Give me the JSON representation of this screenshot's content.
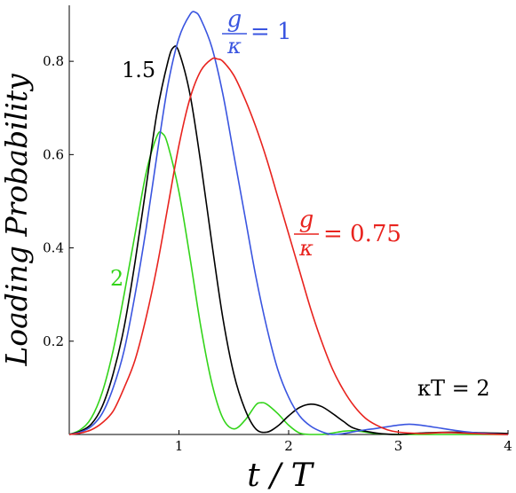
{
  "chart_data": {
    "type": "line",
    "xlabel": "t / T",
    "ylabel": "Loading Probability",
    "xlim": [
      0,
      4
    ],
    "ylim": [
      0,
      0.92
    ],
    "grid": false,
    "legend": "none",
    "x_ticks": [
      "1",
      "2",
      "3",
      "4"
    ],
    "y_ticks": [
      "0.2",
      "0.4",
      "0.6",
      "0.8"
    ],
    "x_tick_values": [
      1,
      2,
      3,
      4
    ],
    "y_tick_values": [
      0.2,
      0.4,
      0.6,
      0.8
    ],
    "annotations": {
      "g_over_kappa_1": {
        "num": "g",
        "den": "κ",
        "rhs": "= 1",
        "color": "#3a55e0"
      },
      "g_over_kappa_075": {
        "num": "g",
        "den": "κ",
        "rhs": "= 0.75",
        "color": "#e8231e"
      },
      "label_15": {
        "text": "1.5",
        "color": "#000000"
      },
      "label_2": {
        "text": "2",
        "color": "#33d41a"
      },
      "kappa_T": {
        "text": "κT = 2",
        "color": "#000000"
      }
    },
    "series": [
      {
        "color": "#33d41a",
        "x": [
          0,
          0.1,
          0.2,
          0.3,
          0.4,
          0.5,
          0.6,
          0.7,
          0.8,
          0.85,
          0.9,
          1.0,
          1.1,
          1.2,
          1.3,
          1.4,
          1.5,
          1.6,
          1.7,
          1.75,
          1.8,
          1.9,
          2.0,
          2.1,
          2.2,
          2.3,
          2.4,
          2.5,
          2.6,
          2.7,
          2.8,
          3.0,
          3.5,
          4.0
        ],
        "y": [
          0,
          0.01,
          0.035,
          0.09,
          0.18,
          0.3,
          0.43,
          0.56,
          0.64,
          0.645,
          0.62,
          0.52,
          0.38,
          0.23,
          0.11,
          0.035,
          0.012,
          0.03,
          0.063,
          0.068,
          0.065,
          0.045,
          0.02,
          0.003,
          0.0,
          0.0,
          0.003,
          0.007,
          0.008,
          0.005,
          0.002,
          0.0,
          0.0,
          0.0
        ]
      },
      {
        "color": "#000000",
        "x": [
          0,
          0.1,
          0.2,
          0.3,
          0.4,
          0.5,
          0.6,
          0.7,
          0.8,
          0.9,
          0.95,
          1.0,
          1.1,
          1.2,
          1.3,
          1.4,
          1.5,
          1.6,
          1.7,
          1.8,
          1.9,
          2.0,
          2.1,
          2.2,
          2.3,
          2.4,
          2.5,
          2.6,
          2.8,
          3.0,
          3.2,
          3.5,
          4.0
        ],
        "y": [
          0,
          0.007,
          0.022,
          0.06,
          0.13,
          0.23,
          0.37,
          0.53,
          0.69,
          0.8,
          0.83,
          0.82,
          0.73,
          0.58,
          0.41,
          0.25,
          0.13,
          0.055,
          0.012,
          0.005,
          0.018,
          0.04,
          0.058,
          0.065,
          0.06,
          0.045,
          0.028,
          0.013,
          0.003,
          0.0,
          0.003,
          0.005,
          0.002
        ]
      },
      {
        "color": "#3a55e0",
        "x": [
          0,
          0.1,
          0.2,
          0.3,
          0.4,
          0.5,
          0.6,
          0.7,
          0.8,
          0.9,
          1.0,
          1.1,
          1.15,
          1.2,
          1.3,
          1.4,
          1.5,
          1.6,
          1.7,
          1.8,
          1.9,
          2.0,
          2.1,
          2.2,
          2.3,
          2.4,
          2.5,
          2.6,
          2.7,
          2.8,
          3.0,
          3.1,
          3.2,
          3.4,
          3.6,
          3.8,
          4.0
        ],
        "y": [
          0,
          0.005,
          0.017,
          0.045,
          0.1,
          0.18,
          0.3,
          0.44,
          0.6,
          0.75,
          0.85,
          0.9,
          0.905,
          0.89,
          0.83,
          0.73,
          0.6,
          0.47,
          0.34,
          0.23,
          0.14,
          0.08,
          0.04,
          0.018,
          0.006,
          0.0,
          0.002,
          0.006,
          0.01,
          0.013,
          0.02,
          0.022,
          0.02,
          0.013,
          0.006,
          0.002,
          0.0
        ]
      },
      {
        "color": "#e8231e",
        "x": [
          0,
          0.1,
          0.2,
          0.3,
          0.4,
          0.5,
          0.6,
          0.7,
          0.8,
          0.9,
          1.0,
          1.1,
          1.2,
          1.3,
          1.35,
          1.4,
          1.5,
          1.6,
          1.7,
          1.8,
          1.9,
          2.0,
          2.1,
          2.2,
          2.3,
          2.4,
          2.5,
          2.6,
          2.7,
          2.8,
          2.9,
          3.0,
          3.2,
          3.4,
          3.6,
          3.8,
          4.0
        ],
        "y": [
          0,
          0.003,
          0.01,
          0.025,
          0.05,
          0.1,
          0.16,
          0.25,
          0.36,
          0.49,
          0.62,
          0.72,
          0.78,
          0.805,
          0.805,
          0.8,
          0.77,
          0.72,
          0.66,
          0.59,
          0.51,
          0.43,
          0.35,
          0.27,
          0.2,
          0.14,
          0.095,
          0.06,
          0.035,
          0.02,
          0.01,
          0.005,
          0.002,
          0.004,
          0.003,
          0.001,
          0.0
        ]
      }
    ]
  }
}
